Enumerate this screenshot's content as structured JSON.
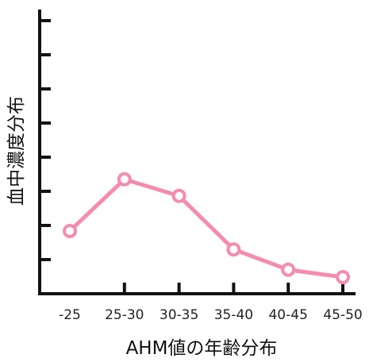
{
  "chart_data": {
    "type": "line",
    "title": "",
    "xlabel": "AHM値の年齢分布",
    "ylabel": "血中濃度分布",
    "categories": [
      "-25",
      "25-30",
      "30-35",
      "35-40",
      "40-45",
      "45-50"
    ],
    "series": [
      {
        "values": [
          4.0,
          5.4,
          4.95,
          3.5,
          2.95,
          2.75
        ]
      }
    ],
    "ylim": [
      2.3,
      10.0
    ],
    "y_tick_count": 8,
    "y_tick_labels_visible": false,
    "grid": false,
    "legend": "none",
    "colors": {
      "series": "#f58bb0",
      "axis": "#111111"
    }
  }
}
